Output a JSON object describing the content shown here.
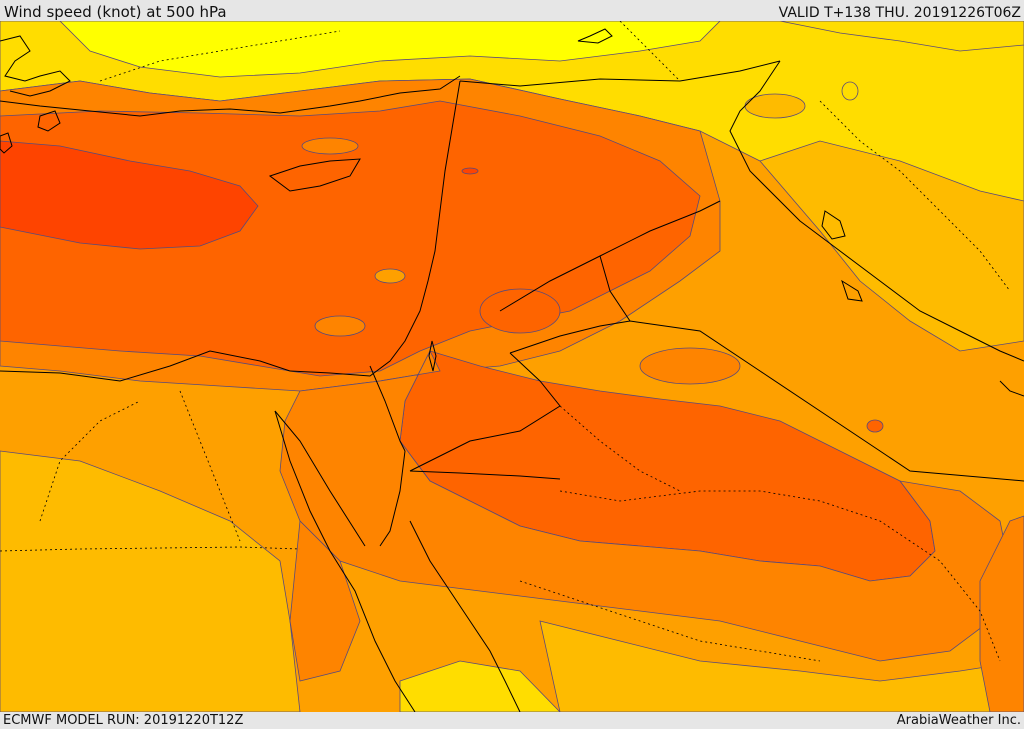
{
  "header": {
    "title": "Wind speed (knot) at 500 hPa",
    "valid": "VALID T+138 THU. 20191226T06Z"
  },
  "footer": {
    "model_run": "ECMWF MODEL RUN: 20191220T12Z",
    "credit": "ArabiaWeather Inc."
  },
  "colors": {
    "lightest": "#ffff00",
    "light": "#ffdd00",
    "medium_light": "#febb00",
    "medium": "#fea000",
    "medium_dark": "#fe8400",
    "dark": "#fe6400",
    "darkest": "#fe4400",
    "contour": "#5a4a7a",
    "border": "#000000"
  }
}
